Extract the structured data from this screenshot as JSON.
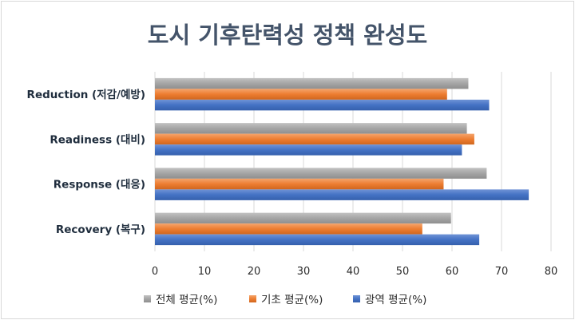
{
  "chart_data": {
    "type": "bar",
    "orientation": "horizontal",
    "title": "도시 기후탄력성 정책 완성도",
    "categories": [
      "Reduction (저감/예방)",
      "Readiness (대비)",
      "Response (대응)",
      "Recovery (복구)"
    ],
    "series": [
      {
        "name": "전체 평균(%)",
        "color": "#a5a5a5",
        "values": [
          63.3,
          63.0,
          67.0,
          59.8
        ]
      },
      {
        "name": "기초 평균(%)",
        "color": "#ed7d31",
        "values": [
          59.0,
          64.5,
          58.3,
          54.0
        ]
      },
      {
        "name": "광역 평균(%)",
        "color": "#4472c4",
        "values": [
          67.5,
          62.0,
          75.5,
          65.5
        ]
      }
    ],
    "xlim": [
      0,
      80
    ],
    "xticks": [
      0,
      10,
      20,
      30,
      40,
      50,
      60,
      70,
      80
    ],
    "grid": true,
    "legend": "bottom"
  }
}
